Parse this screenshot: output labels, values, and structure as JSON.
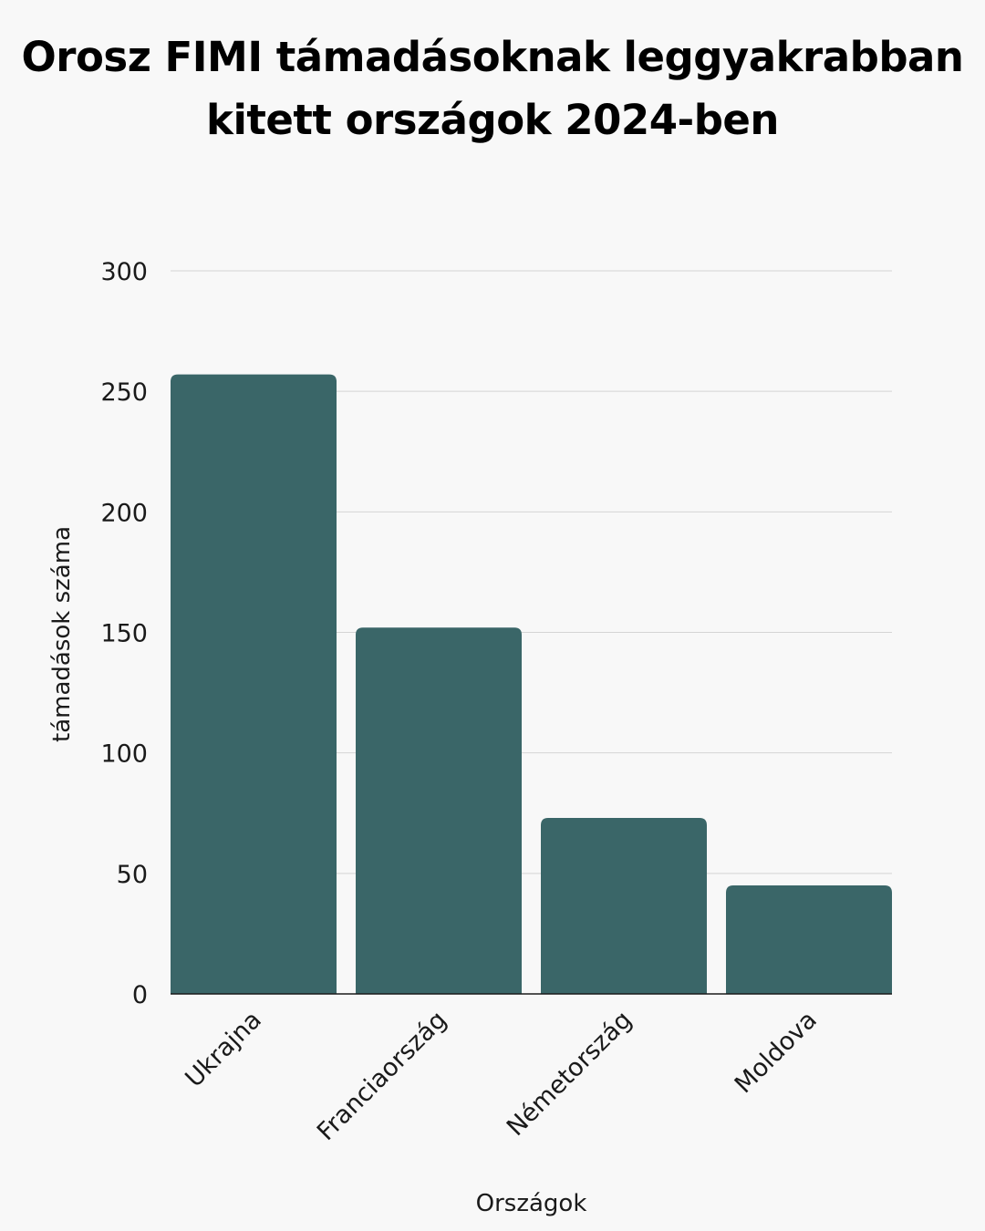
{
  "chart_data": {
    "type": "bar",
    "title_lines": [
      "Orosz FIMI támadásoknak leggyakrabban",
      "kitett országok 2024-ben"
    ],
    "xlabel": "Országok",
    "ylabel": "támadások száma",
    "categories": [
      "Ukrajna",
      "Franciaország",
      "Németország",
      "Moldova"
    ],
    "values": [
      257,
      152,
      73,
      45
    ],
    "ylim": [
      0,
      300
    ],
    "yticks": [
      0,
      50,
      100,
      150,
      200,
      250,
      300
    ],
    "grid": true,
    "legend": "none",
    "bar_color": "#3a6668",
    "grid_color": "#d5d5d5",
    "axis_color": "#1a1a1a"
  }
}
